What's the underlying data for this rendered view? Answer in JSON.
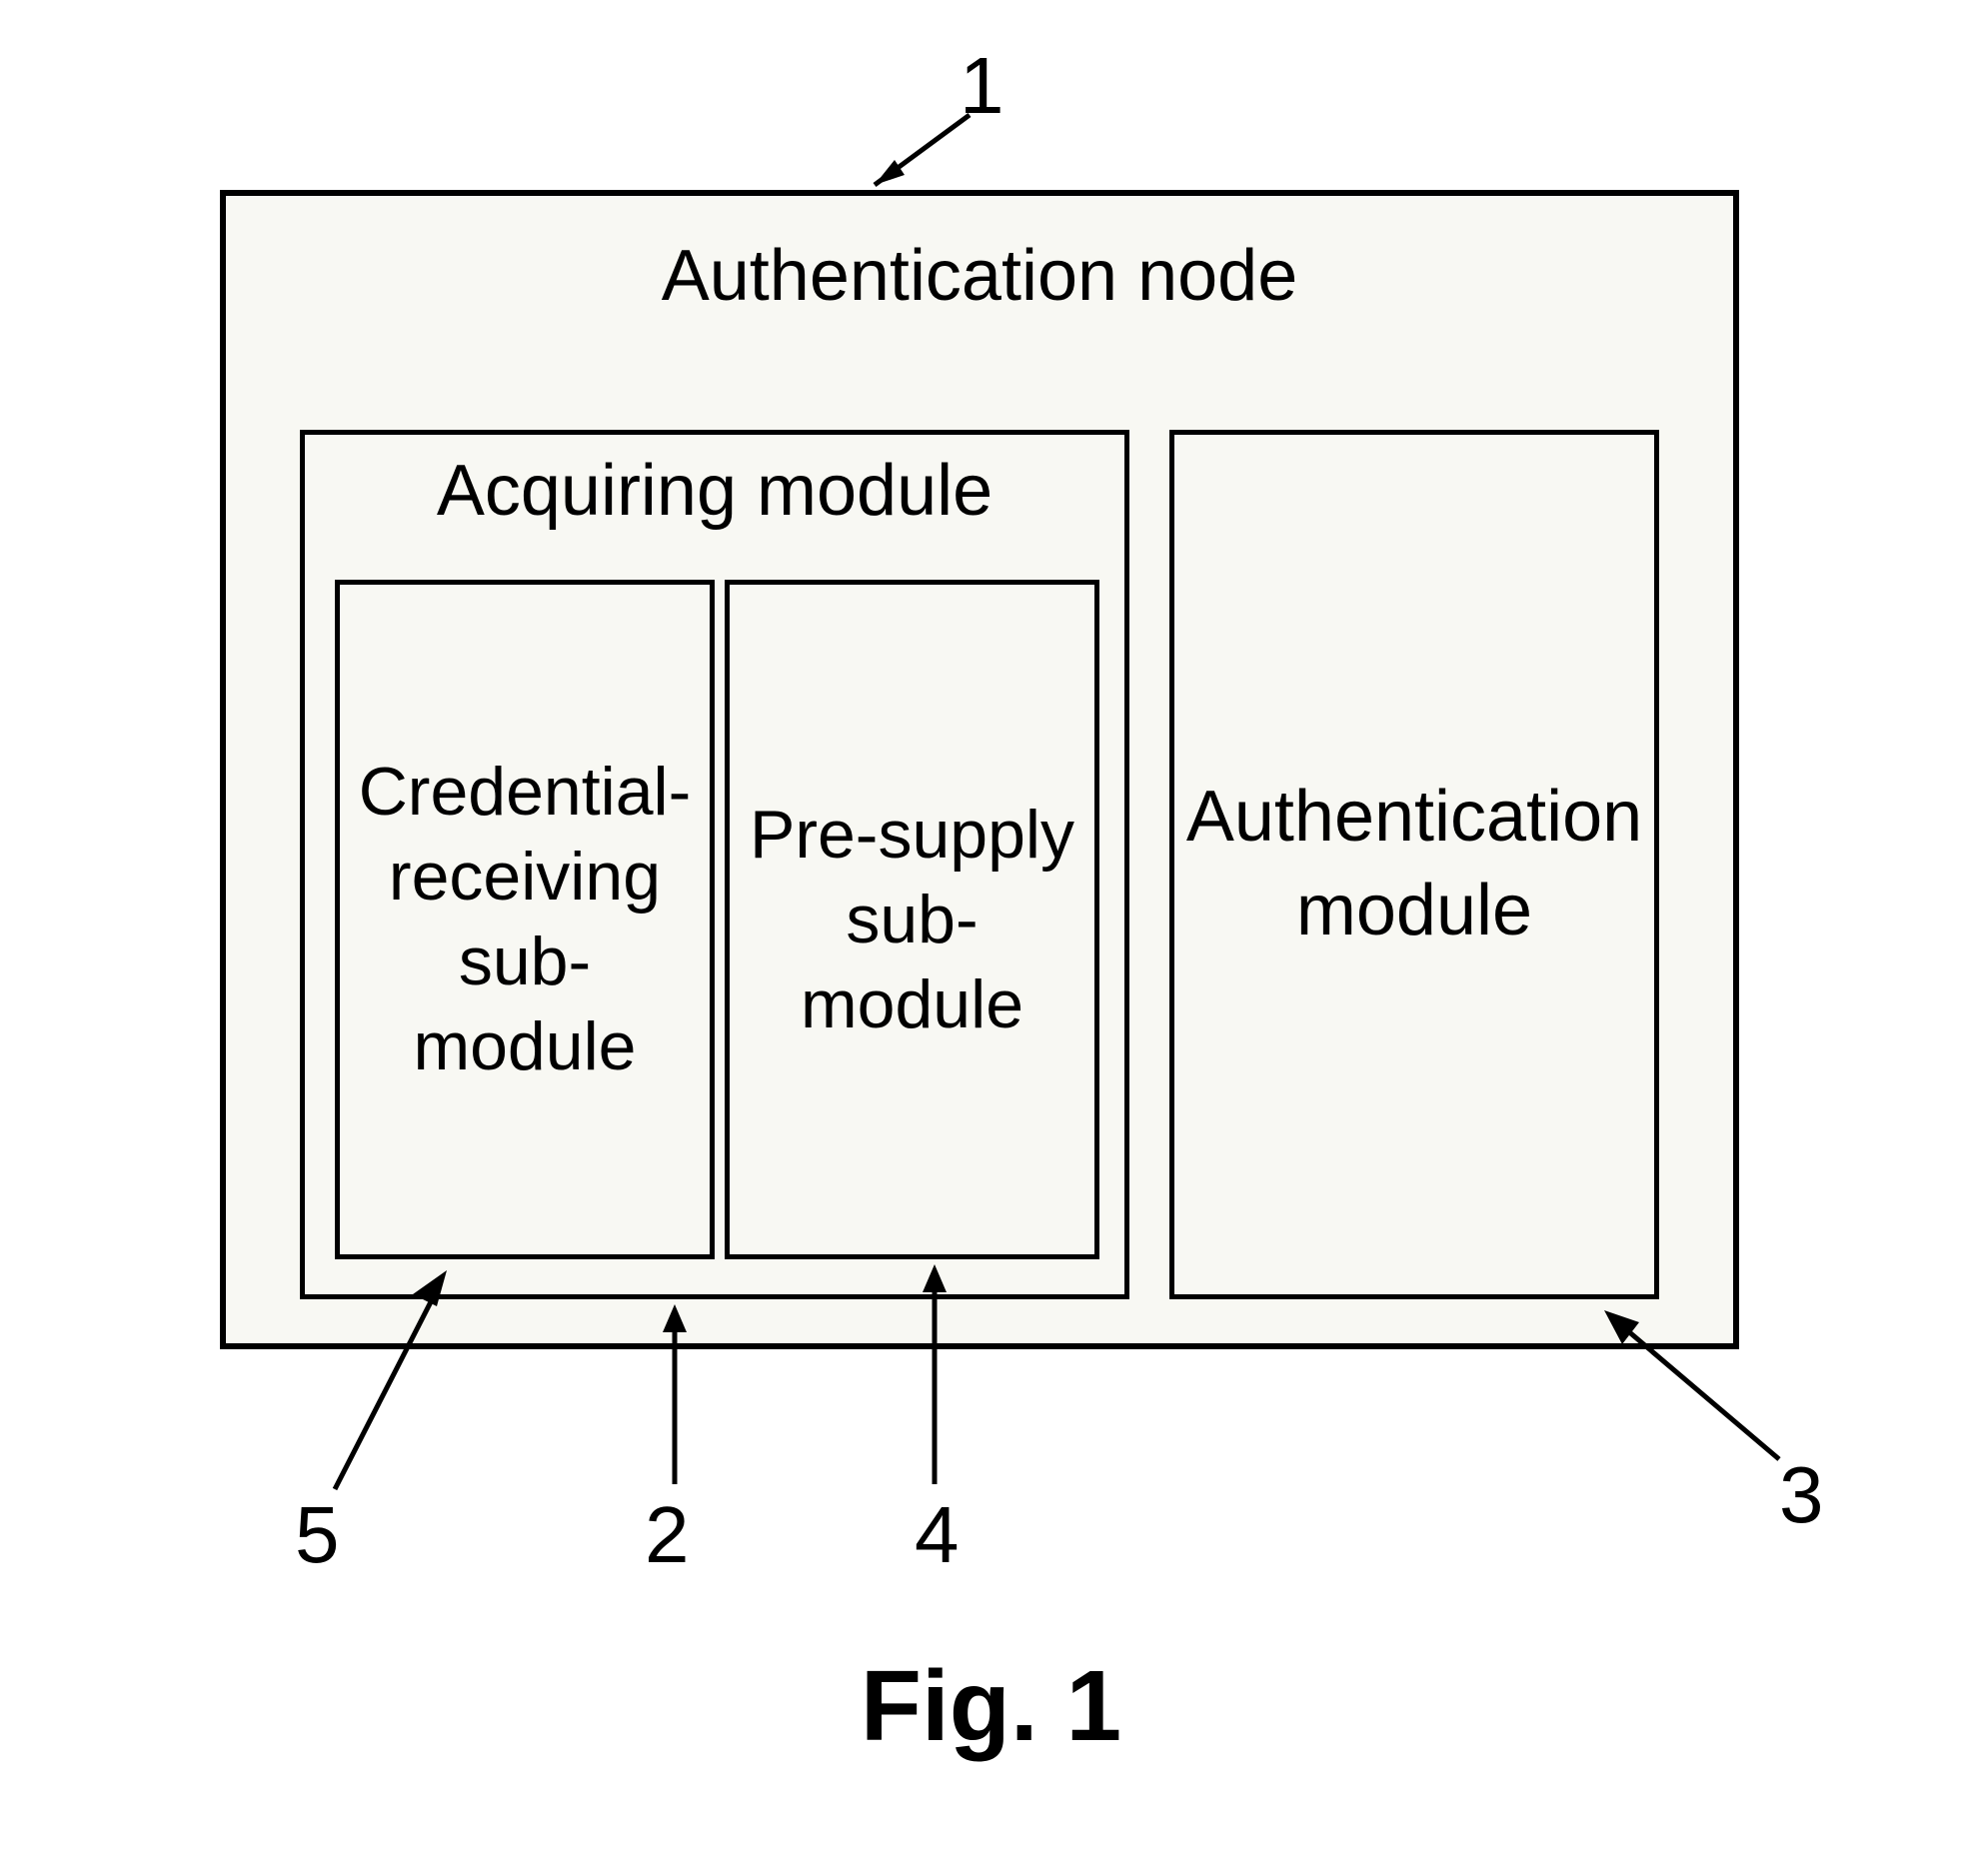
{
  "diagram": {
    "type": "block-diagram",
    "outer": {
      "label": "Authentication node",
      "ref": "1"
    },
    "acquiring": {
      "label": "Acquiring module",
      "ref": "2"
    },
    "credential": {
      "label": "Credential-\nreceiving\nsub-\nmodule",
      "ref": "5"
    },
    "presupply": {
      "label": "Pre-supply\nsub-\nmodule",
      "ref": "4"
    },
    "authmod": {
      "label": "Authentication\nmodule",
      "ref": "3"
    },
    "caption": "Fig. 1",
    "colors": {
      "box_fill": "#f8f8f3",
      "border": "#000000",
      "text": "#000000",
      "background": "#ffffff"
    },
    "border_width": 5,
    "outer_border_width": 6,
    "font_family": "Arial",
    "label_fontsize": 72,
    "inner_label_fontsize": 68,
    "ref_fontsize": 80,
    "caption_fontsize": 100
  }
}
